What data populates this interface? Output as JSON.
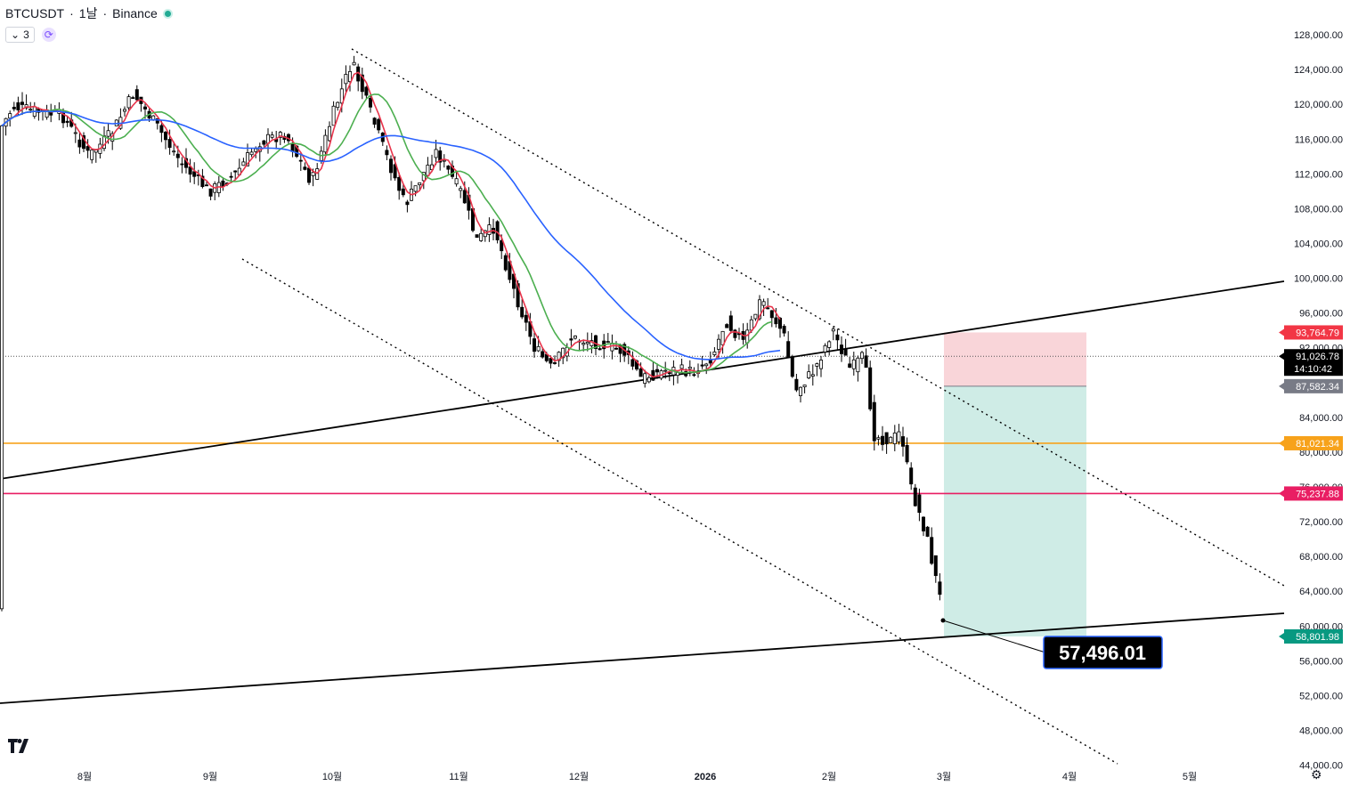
{
  "header": {
    "symbol": "BTCUSDT",
    "sep1": "·",
    "interval": "1날",
    "sep2": "·",
    "exchange": "Binance",
    "indicator_count": "3"
  },
  "chart_data": {
    "type": "candlestick",
    "price_ticks": [
      "128,000.00",
      "124,000.00",
      "120,000.00",
      "116,000.00",
      "112,000.00",
      "108,000.00",
      "104,000.00",
      "100,000.00",
      "96,000.00",
      "92,000.00",
      "84,000.00",
      "80,000.00",
      "76,000.00",
      "72,000.00",
      "68,000.00",
      "64,000.00",
      "60,000.00",
      "56,000.00",
      "52,000.00",
      "48,000.00",
      "44,000.00"
    ],
    "time_ticks": [
      "8월",
      "9월",
      "10월",
      "11월",
      "12월",
      "2026",
      "2월",
      "3월",
      "4월",
      "5월"
    ],
    "price_range": [
      41600,
      132000
    ],
    "price_labels": {
      "stop": "93,764.79",
      "last": "91,026.78",
      "countdown": "14:10:42",
      "entry": "87,582.34",
      "level_orange": "81,021.34",
      "level_pink": "75,237.88",
      "target": "58,801.98"
    },
    "annotation": "57,496.01",
    "horizontal_levels": [
      {
        "value": 81021.34,
        "color": "#f7a21b"
      },
      {
        "value": 75237.88,
        "color": "#e91e63"
      }
    ],
    "position": {
      "entry": 87582.34,
      "stop": 93764.79,
      "target": 58801.98
    },
    "colors": {
      "up": "#ffffff",
      "down": "#000000",
      "ma_fast": "#e8344b",
      "ma_mid": "#4caf50",
      "ma_slow": "#2962ff",
      "risk": "#f9d5d9",
      "reward": "#cfece6"
    }
  }
}
